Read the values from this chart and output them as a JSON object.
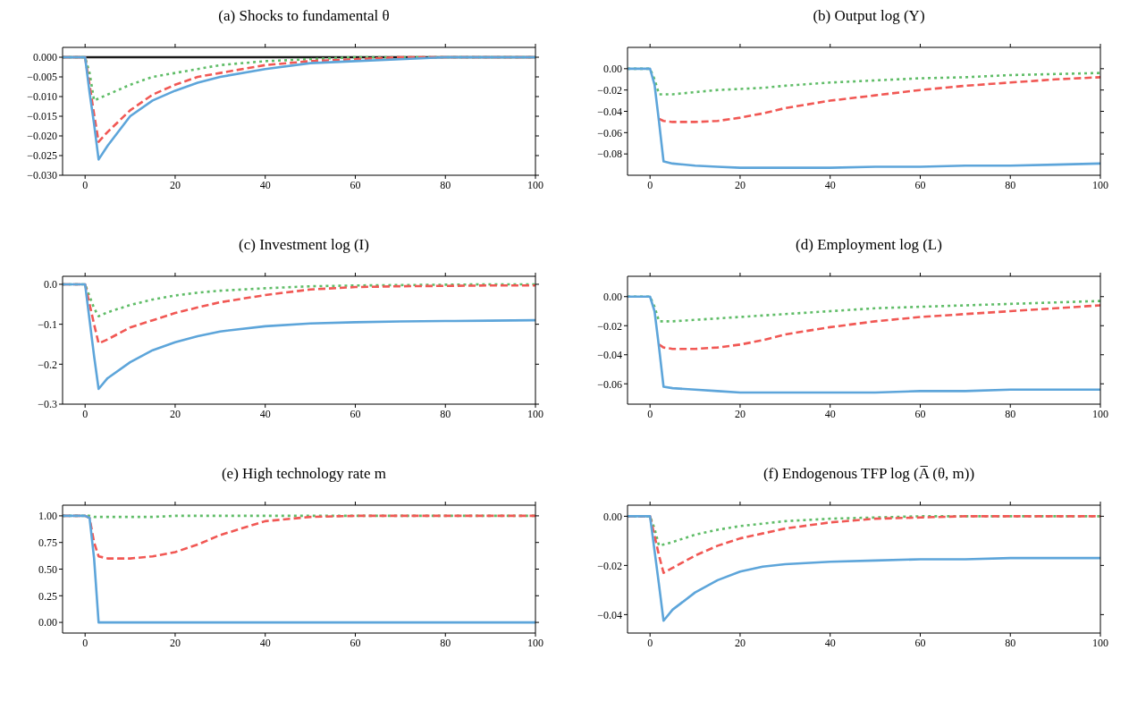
{
  "chart_data": [
    {
      "type": "line",
      "title": "(a) Shocks to fundamental θ",
      "x": [
        -5,
        0,
        1,
        2,
        3,
        5,
        10,
        15,
        20,
        25,
        30,
        40,
        50,
        60,
        70,
        80,
        90,
        100
      ],
      "xlim": [
        -5,
        100
      ],
      "xticks": [
        0,
        20,
        40,
        60,
        80,
        100
      ],
      "ylim": [
        -0.03,
        0.0025
      ],
      "yticks": [
        {
          "value": 0,
          "label": "0.000"
        },
        {
          "value": -0.005,
          "label": "−0.005"
        },
        {
          "value": -0.01,
          "label": "−0.010"
        },
        {
          "value": -0.015,
          "label": "−0.015"
        },
        {
          "value": -0.02,
          "label": "−0.020"
        },
        {
          "value": -0.025,
          "label": "−0.025"
        },
        {
          "value": -0.03,
          "label": "−0.030"
        }
      ],
      "grid": false,
      "legend": false,
      "marker": "none",
      "ref_lines": [
        {
          "axis": "y",
          "value": 0,
          "color": "#1a1a1a"
        }
      ],
      "series": [
        {
          "color": "#60bd68",
          "line_style": "dotted",
          "values": [
            0,
            0,
            -0.004,
            -0.011,
            -0.0105,
            -0.0095,
            -0.007,
            -0.005,
            -0.004,
            -0.003,
            -0.002,
            -0.001,
            -0.0005,
            0,
            0,
            0,
            0,
            0
          ]
        },
        {
          "color": "#f15854",
          "line_style": "dashed",
          "values": [
            0,
            0,
            -0.007,
            -0.0145,
            -0.0215,
            -0.019,
            -0.0135,
            -0.0095,
            -0.007,
            -0.005,
            -0.004,
            -0.002,
            -0.001,
            -0.0005,
            0,
            0,
            0,
            0
          ]
        },
        {
          "color": "#5da5da",
          "line_style": "solid",
          "values": [
            0,
            0,
            -0.009,
            -0.017,
            -0.026,
            -0.0225,
            -0.015,
            -0.011,
            -0.0085,
            -0.0065,
            -0.005,
            -0.003,
            -0.0015,
            -0.001,
            -0.0005,
            0,
            0,
            0
          ]
        }
      ]
    },
    {
      "type": "line",
      "title": "(b) Output log (Y)",
      "x": [
        -5,
        0,
        1,
        2,
        3,
        5,
        10,
        15,
        20,
        25,
        30,
        40,
        50,
        60,
        70,
        80,
        90,
        100
      ],
      "xlim": [
        -5,
        100
      ],
      "xticks": [
        0,
        20,
        40,
        60,
        80,
        100
      ],
      "ylim": [
        -0.1,
        0.02
      ],
      "yticks": [
        {
          "value": 0,
          "label": "0.00"
        },
        {
          "value": -0.02,
          "label": "−0.02"
        },
        {
          "value": -0.04,
          "label": "−0.04"
        },
        {
          "value": -0.06,
          "label": "−0.06"
        },
        {
          "value": -0.08,
          "label": "−0.08"
        }
      ],
      "grid": false,
      "legend": false,
      "marker": "none",
      "series": [
        {
          "color": "#60bd68",
          "line_style": "dotted",
          "values": [
            0,
            0,
            -0.01,
            -0.024,
            -0.024,
            -0.024,
            -0.022,
            -0.02,
            -0.019,
            -0.018,
            -0.016,
            -0.013,
            -0.011,
            -0.009,
            -0.008,
            -0.006,
            -0.005,
            -0.004
          ]
        },
        {
          "color": "#f15854",
          "line_style": "dashed",
          "values": [
            null,
            null,
            null,
            -0.047,
            -0.049,
            -0.05,
            -0.05,
            -0.049,
            -0.046,
            -0.042,
            -0.037,
            -0.03,
            -0.025,
            -0.02,
            -0.016,
            -0.013,
            -0.01,
            -0.008
          ]
        },
        {
          "color": "#5da5da",
          "line_style": "solid",
          "values": [
            0,
            0,
            -0.015,
            -0.05,
            -0.087,
            -0.089,
            -0.091,
            -0.092,
            -0.093,
            -0.093,
            -0.093,
            -0.093,
            -0.092,
            -0.092,
            -0.091,
            -0.091,
            -0.09,
            -0.089
          ]
        }
      ]
    },
    {
      "type": "line",
      "title": "(c) Investment log (I)",
      "x": [
        -5,
        0,
        1,
        2,
        3,
        5,
        10,
        15,
        20,
        25,
        30,
        40,
        50,
        60,
        70,
        80,
        90,
        100
      ],
      "xlim": [
        -5,
        100
      ],
      "xticks": [
        0,
        20,
        40,
        60,
        80,
        100
      ],
      "ylim": [
        -0.3,
        0.02
      ],
      "yticks": [
        {
          "value": 0,
          "label": "0.0"
        },
        {
          "value": -0.1,
          "label": "−0.1"
        },
        {
          "value": -0.2,
          "label": "−0.2"
        },
        {
          "value": -0.3,
          "label": "−0.3"
        }
      ],
      "grid": false,
      "legend": false,
      "marker": "none",
      "series": [
        {
          "color": "#60bd68",
          "line_style": "dotted",
          "values": [
            0,
            0,
            -0.03,
            -0.06,
            -0.08,
            -0.07,
            -0.052,
            -0.038,
            -0.028,
            -0.021,
            -0.016,
            -0.01,
            -0.005,
            -0.003,
            -0.002,
            -0.001,
            0,
            0
          ]
        },
        {
          "color": "#f15854",
          "line_style": "dashed",
          "values": [
            0,
            0,
            -0.05,
            -0.1,
            -0.148,
            -0.138,
            -0.108,
            -0.09,
            -0.072,
            -0.058,
            -0.045,
            -0.027,
            -0.013,
            -0.007,
            -0.005,
            -0.004,
            -0.003,
            -0.003
          ]
        },
        {
          "color": "#5da5da",
          "line_style": "solid",
          "values": [
            0,
            0,
            -0.09,
            -0.18,
            -0.262,
            -0.235,
            -0.195,
            -0.165,
            -0.145,
            -0.13,
            -0.118,
            -0.105,
            -0.098,
            -0.095,
            -0.093,
            -0.092,
            -0.091,
            -0.09
          ]
        }
      ]
    },
    {
      "type": "line",
      "title": "(d) Employment log (L)",
      "x": [
        -5,
        0,
        1,
        2,
        3,
        5,
        10,
        15,
        20,
        25,
        30,
        40,
        50,
        60,
        70,
        80,
        90,
        100
      ],
      "xlim": [
        -5,
        100
      ],
      "xticks": [
        0,
        20,
        40,
        60,
        80,
        100
      ],
      "ylim": [
        -0.074,
        0.014
      ],
      "yticks": [
        {
          "value": 0,
          "label": "0.00"
        },
        {
          "value": -0.02,
          "label": "−0.02"
        },
        {
          "value": -0.04,
          "label": "−0.04"
        },
        {
          "value": -0.06,
          "label": "−0.06"
        }
      ],
      "grid": false,
      "legend": false,
      "marker": "none",
      "series": [
        {
          "color": "#60bd68",
          "line_style": "dotted",
          "values": [
            0,
            0,
            -0.007,
            -0.017,
            -0.017,
            -0.017,
            -0.016,
            -0.015,
            -0.014,
            -0.013,
            -0.012,
            -0.01,
            -0.008,
            -0.007,
            -0.006,
            -0.005,
            -0.004,
            -0.003
          ]
        },
        {
          "color": "#f15854",
          "line_style": "dashed",
          "values": [
            null,
            null,
            null,
            -0.033,
            -0.035,
            -0.036,
            -0.036,
            -0.035,
            -0.033,
            -0.03,
            -0.026,
            -0.021,
            -0.017,
            -0.014,
            -0.012,
            -0.01,
            -0.008,
            -0.006
          ]
        },
        {
          "color": "#5da5da",
          "line_style": "solid",
          "values": [
            0,
            0,
            -0.01,
            -0.035,
            -0.062,
            -0.063,
            -0.064,
            -0.065,
            -0.066,
            -0.066,
            -0.066,
            -0.066,
            -0.066,
            -0.065,
            -0.065,
            -0.064,
            -0.064,
            -0.064
          ]
        }
      ]
    },
    {
      "type": "line",
      "title": "(e) High technology rate m",
      "x": [
        -5,
        0,
        1,
        2,
        3,
        5,
        10,
        15,
        20,
        25,
        30,
        40,
        50,
        60,
        70,
        80,
        90,
        100
      ],
      "xlim": [
        -5,
        100
      ],
      "xticks": [
        0,
        20,
        40,
        60,
        80,
        100
      ],
      "ylim": [
        -0.1,
        1.1
      ],
      "yticks": [
        {
          "value": 0,
          "label": "0.00"
        },
        {
          "value": 0.25,
          "label": "0.25"
        },
        {
          "value": 0.5,
          "label": "0.50"
        },
        {
          "value": 0.75,
          "label": "0.75"
        },
        {
          "value": 1,
          "label": "1.00"
        }
      ],
      "grid": false,
      "legend": false,
      "marker": "none",
      "series": [
        {
          "color": "#60bd68",
          "line_style": "dotted",
          "values": [
            1,
            1,
            1,
            0.99,
            0.99,
            0.99,
            0.99,
            0.99,
            1,
            1,
            1,
            1,
            1,
            1,
            1,
            1,
            1,
            1
          ]
        },
        {
          "color": "#f15854",
          "line_style": "dashed",
          "values": [
            1,
            1,
            0.98,
            0.75,
            0.62,
            0.6,
            0.6,
            0.62,
            0.66,
            0.73,
            0.82,
            0.95,
            0.99,
            1,
            1,
            1,
            1,
            1
          ]
        },
        {
          "color": "#5da5da",
          "line_style": "solid",
          "values": [
            1,
            1,
            0.98,
            0.6,
            0,
            0,
            0,
            0,
            0,
            0,
            0,
            0,
            0,
            0,
            0,
            0,
            0,
            0
          ]
        }
      ]
    },
    {
      "type": "line",
      "title": "(f) Endogenous TFP log (A̅ (θ, m))",
      "x": [
        -5,
        0,
        1,
        2,
        3,
        5,
        10,
        15,
        20,
        25,
        30,
        40,
        50,
        60,
        70,
        80,
        90,
        100
      ],
      "xlim": [
        -5,
        100
      ],
      "xticks": [
        0,
        20,
        40,
        60,
        80,
        100
      ],
      "ylim": [
        -0.0475,
        0.0045
      ],
      "yticks": [
        {
          "value": 0,
          "label": "0.00"
        },
        {
          "value": -0.02,
          "label": "−0.02"
        },
        {
          "value": -0.04,
          "label": "−0.04"
        }
      ],
      "grid": false,
      "legend": false,
      "marker": "none",
      "series": [
        {
          "color": "#60bd68",
          "line_style": "dotted",
          "values": [
            0,
            0,
            -0.005,
            -0.012,
            -0.0115,
            -0.0105,
            -0.0075,
            -0.0055,
            -0.004,
            -0.003,
            -0.002,
            -0.001,
            -0.0005,
            0,
            0,
            0,
            0,
            0
          ]
        },
        {
          "color": "#f15854",
          "line_style": "dashed",
          "values": [
            0,
            0,
            -0.008,
            -0.016,
            -0.023,
            -0.021,
            -0.016,
            -0.012,
            -0.009,
            -0.007,
            -0.005,
            -0.0025,
            -0.001,
            -0.0005,
            0,
            0,
            0,
            0
          ]
        },
        {
          "color": "#5da5da",
          "line_style": "solid",
          "values": [
            0,
            0,
            -0.014,
            -0.028,
            -0.0425,
            -0.038,
            -0.031,
            -0.026,
            -0.0225,
            -0.0205,
            -0.0195,
            -0.0185,
            -0.018,
            -0.0175,
            -0.0175,
            -0.017,
            -0.017,
            -0.017
          ]
        }
      ]
    }
  ]
}
